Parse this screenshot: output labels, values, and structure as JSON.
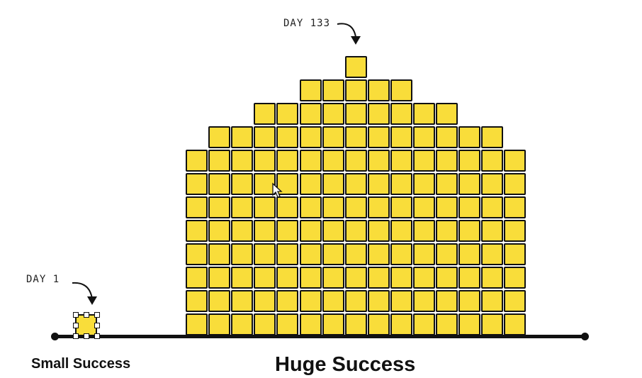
{
  "labels": {
    "day_first": "DAY 1",
    "day_last": "DAY 133",
    "small_caption": "Small Success",
    "huge_caption": "Huge Success"
  },
  "pyramid": {
    "columns": 15,
    "rows_from_bottom": [
      15,
      15,
      15,
      15,
      15,
      15,
      15,
      15,
      13,
      9,
      5,
      1
    ]
  },
  "colors": {
    "block": "#f9dd3a",
    "outline": "#111111"
  }
}
